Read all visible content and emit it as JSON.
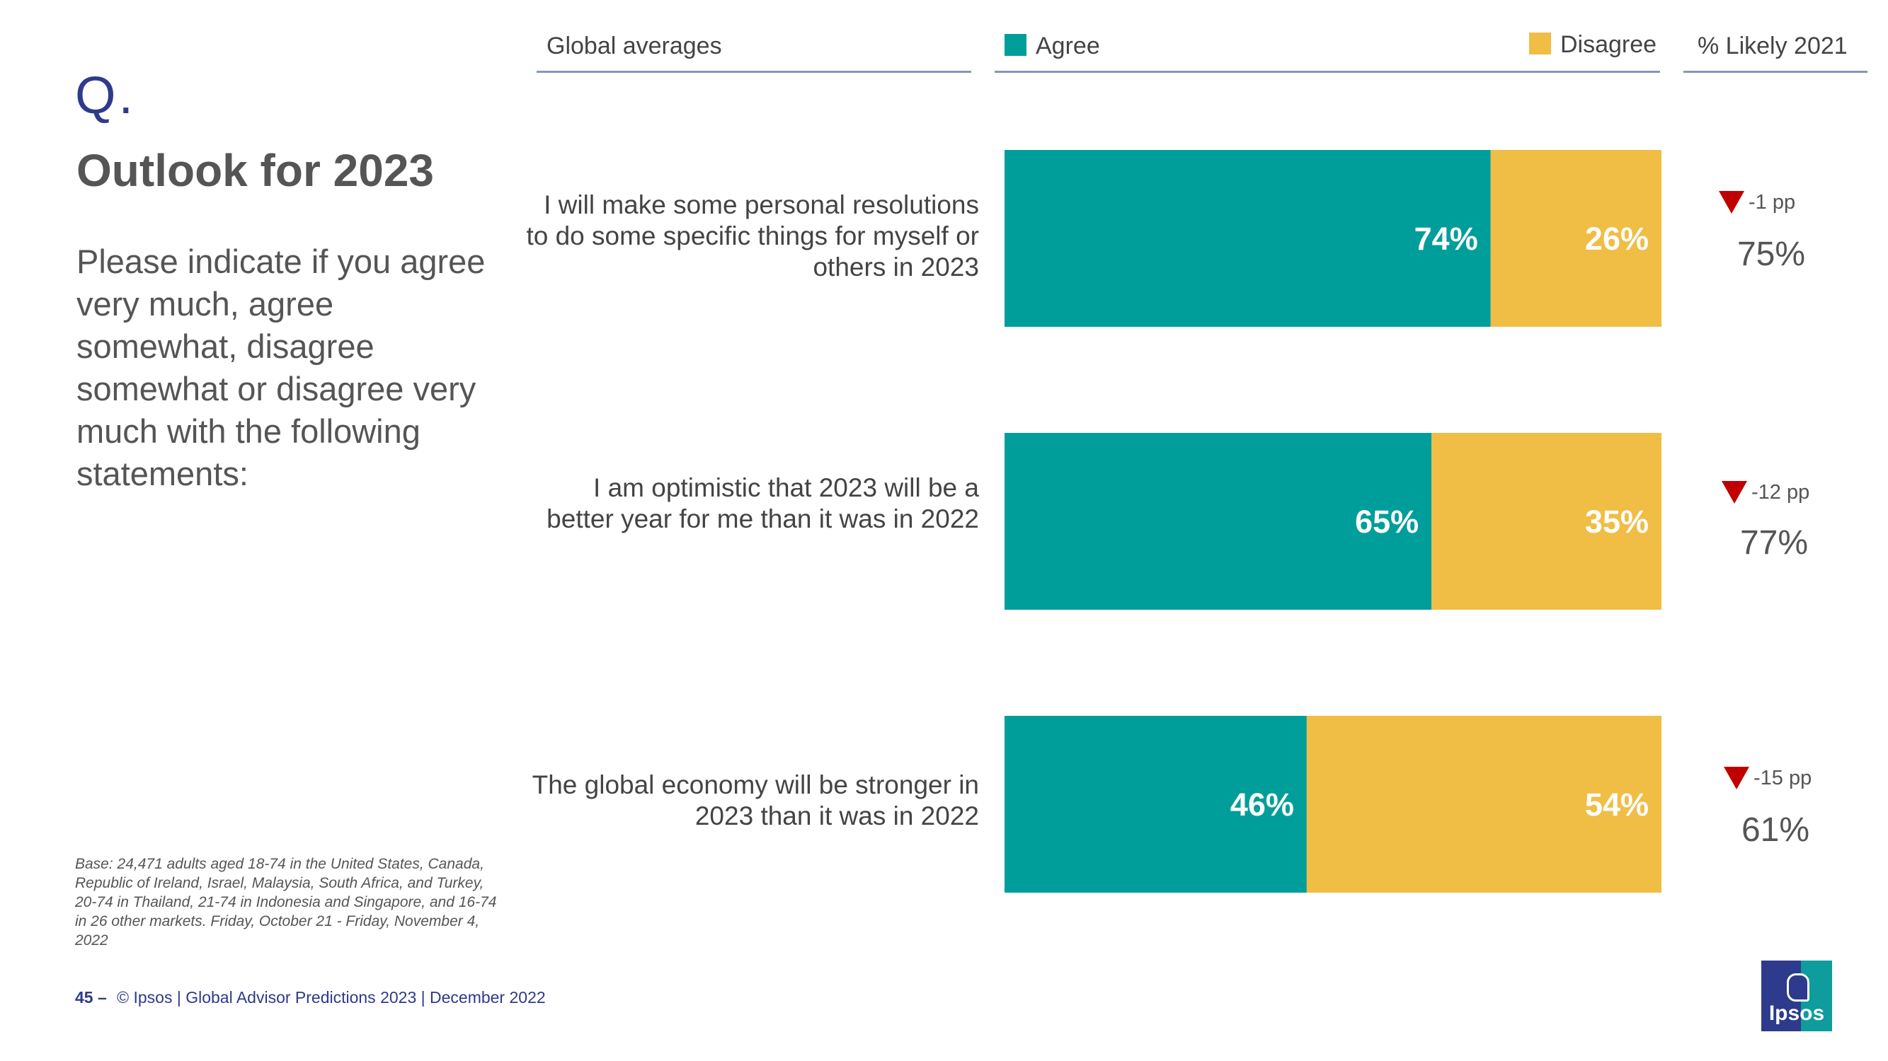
{
  "slide": {
    "q_mark": "Q.",
    "title": "Outlook for 2023",
    "question": "Please indicate if you agree very much, agree somewhat, disagree somewhat or disagree very much with the following statements:",
    "base_note": "Base: 24,471 adults aged 18-74 in the United States, Canada, Republic of Ireland, Israel, Malaysia, South Africa, and Turkey, 20-74 in Thailand, 21-74 in Indonesia and Singapore, and 16-74 in 26 other markets. Friday, October 21 -  Friday, November 4, 2022",
    "footer_page": "45 –",
    "footer_text": "© Ipsos | Global Advisor Predictions 2023 | December 2022",
    "logo_text": "Ipsos"
  },
  "headers": {
    "global": "Global averages",
    "agree": "Agree",
    "disagree": "Disagree",
    "likely": "% Likely 2021"
  },
  "colors": {
    "agree": "#009e9a",
    "disagree": "#f0bd45",
    "accent": "#2e3a8c",
    "down": "#c00000"
  },
  "chart_data": {
    "type": "bar",
    "orientation": "horizontal-stacked",
    "title": "Global averages",
    "categories": [
      "I will make some personal resolutions to do some specific things for myself or others in 2023",
      "I am optimistic that 2023 will be a better year for me than it was in 2022",
      "The global economy will be stronger in 2023 than it was in 2022"
    ],
    "series": [
      {
        "name": "Agree",
        "values": [
          74,
          65,
          46
        ],
        "labels": [
          "74%",
          "65%",
          "46%"
        ]
      },
      {
        "name": "Disagree",
        "values": [
          26,
          35,
          54
        ],
        "labels": [
          "26%",
          "35%",
          "54%"
        ]
      }
    ],
    "likely_2021": [
      {
        "value": "75%",
        "delta": "-1 pp",
        "direction": "down"
      },
      {
        "value": "77%",
        "delta": "-12 pp",
        "direction": "down"
      },
      {
        "value": "61%",
        "delta": "-15 pp",
        "direction": "down"
      }
    ],
    "xlim": [
      0,
      100
    ],
    "legend": "top"
  }
}
